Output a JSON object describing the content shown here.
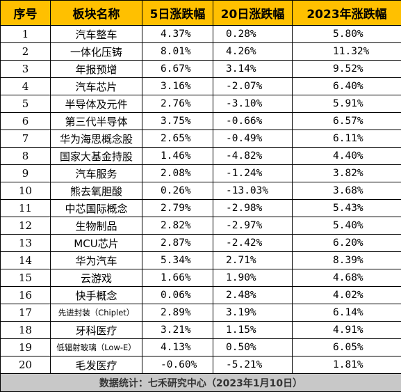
{
  "table": {
    "headers": [
      "序号",
      "板块名称",
      "5日涨跌幅",
      "20日涨跌幅",
      "2023年涨跌幅"
    ],
    "rows": [
      [
        "1",
        "汽车整车",
        "4.37%",
        "0.28%",
        "5.80%"
      ],
      [
        "2",
        "一体化压铸",
        "8.01%",
        "4.26%",
        "11.32%"
      ],
      [
        "3",
        "年报预增",
        "6.67%",
        "3.14%",
        "9.52%"
      ],
      [
        "4",
        "汽车芯片",
        "3.16%",
        "-2.07%",
        "6.40%"
      ],
      [
        "5",
        "半导体及元件",
        "2.76%",
        "-3.10%",
        "5.91%"
      ],
      [
        "6",
        "第三代半导体",
        "3.75%",
        "-0.66%",
        "6.57%"
      ],
      [
        "7",
        "华为海思概念股",
        "2.65%",
        "-0.49%",
        "6.11%"
      ],
      [
        "8",
        "国家大基金持股",
        "1.46%",
        "-4.82%",
        "4.40%"
      ],
      [
        "9",
        "汽车服务",
        "2.08%",
        "-1.24%",
        "3.82%"
      ],
      [
        "10",
        "熊去氧胆酸",
        "0.26%",
        "-13.03%",
        "3.68%"
      ],
      [
        "11",
        "中芯国际概念",
        "2.79%",
        "-2.98%",
        "5.43%"
      ],
      [
        "12",
        "生物制品",
        "2.82%",
        "-2.97%",
        "5.40%"
      ],
      [
        "13",
        "MCU芯片",
        "2.87%",
        "-2.42%",
        "6.20%"
      ],
      [
        "14",
        "华为汽车",
        "5.34%",
        "2.71%",
        "8.39%"
      ],
      [
        "15",
        "云游戏",
        "1.66%",
        "1.90%",
        "4.68%"
      ],
      [
        "16",
        "快手概念",
        "0.06%",
        "2.48%",
        "4.02%"
      ],
      [
        "17",
        "先进封装（Chiplet）",
        "2.89%",
        "3.19%",
        "6.14%"
      ],
      [
        "18",
        "牙科医疗",
        "3.21%",
        "1.15%",
        "4.91%"
      ],
      [
        "19",
        "低辐射玻璃（Low-E）",
        "4.13%",
        "0.50%",
        "6.05%"
      ],
      [
        "20",
        "毛发医疗",
        "-0.60%",
        "-5.21%",
        "1.81%"
      ]
    ],
    "footer": "数据统计：七禾研究中心（2023年1月10日）"
  },
  "colors": {
    "header_bg": "#ffc000",
    "footer_bg": "#c8c8c8",
    "border": "#000000"
  }
}
